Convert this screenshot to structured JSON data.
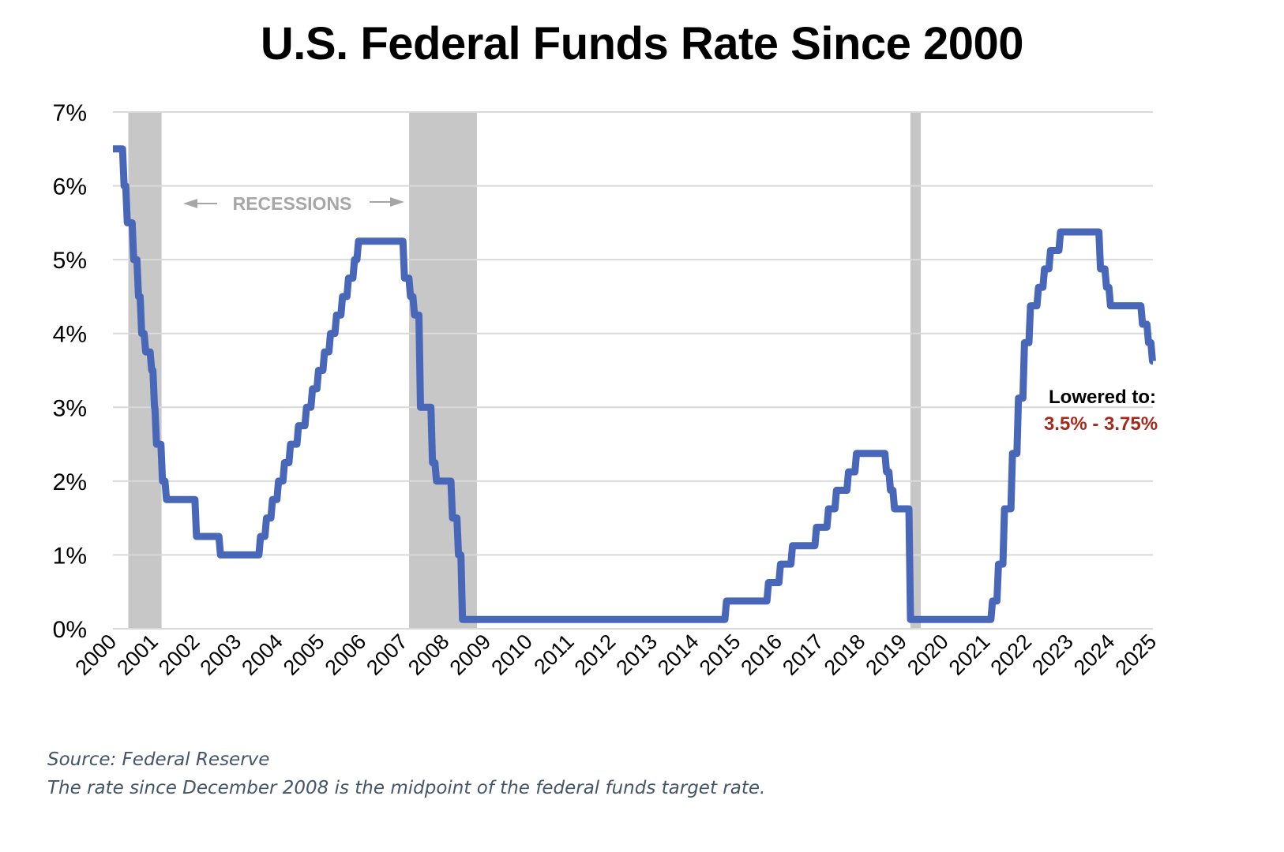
{
  "chart_data": {
    "type": "line",
    "title": "U.S. Federal Funds Rate Since 2000",
    "xlabel": "",
    "ylabel": "",
    "xlim": [
      2000,
      2025
    ],
    "ylim": [
      0,
      7
    ],
    "grid": true,
    "y_ticks": [
      0,
      1,
      2,
      3,
      4,
      5,
      6,
      7
    ],
    "y_tick_labels": [
      "0%",
      "1%",
      "2%",
      "3%",
      "4%",
      "5%",
      "6%",
      "7%"
    ],
    "x_tick_labels": [
      "2000",
      "2001",
      "2002",
      "2003",
      "2004",
      "2005",
      "2006",
      "2007",
      "2008",
      "2009",
      "2010",
      "2011",
      "2012",
      "2013",
      "2014",
      "2015",
      "2016",
      "2017",
      "2018",
      "2019",
      "2020",
      "2021",
      "2022",
      "2023",
      "2024",
      "2025"
    ],
    "line_color": "#4867b8",
    "recession_color": "#c8c7c8",
    "recessions": [
      [
        2000.37,
        2001.17
      ],
      [
        2007.12,
        2008.75
      ],
      [
        2019.17,
        2019.42
      ]
    ],
    "recession_label": "RECESSIONS",
    "series": [
      {
        "name": "Federal Funds Rate",
        "step": true,
        "points": [
          [
            2000.0,
            6.5
          ],
          [
            2000.24,
            6.0
          ],
          [
            2000.32,
            5.5
          ],
          [
            2000.48,
            5.0
          ],
          [
            2000.6,
            4.5
          ],
          [
            2000.68,
            4.0
          ],
          [
            2000.78,
            3.75
          ],
          [
            2000.93,
            3.5
          ],
          [
            2001.0,
            3.0
          ],
          [
            2001.05,
            2.5
          ],
          [
            2001.2,
            2.0
          ],
          [
            2001.3,
            1.75
          ],
          [
            2002.05,
            1.25
          ],
          [
            2002.65,
            1.0
          ],
          [
            2003.65,
            1.25
          ],
          [
            2003.8,
            1.5
          ],
          [
            2003.95,
            1.75
          ],
          [
            2004.1,
            2.0
          ],
          [
            2004.25,
            2.25
          ],
          [
            2004.4,
            2.5
          ],
          [
            2004.6,
            2.75
          ],
          [
            2004.8,
            3.0
          ],
          [
            2004.95,
            3.25
          ],
          [
            2005.1,
            3.5
          ],
          [
            2005.25,
            3.75
          ],
          [
            2005.4,
            4.0
          ],
          [
            2005.55,
            4.25
          ],
          [
            2005.7,
            4.5
          ],
          [
            2005.85,
            4.75
          ],
          [
            2006.0,
            5.0
          ],
          [
            2006.1,
            5.25
          ],
          [
            2007.25,
            4.75
          ],
          [
            2007.4,
            4.5
          ],
          [
            2007.5,
            4.25
          ],
          [
            2007.65,
            3.0
          ],
          [
            2007.95,
            2.25
          ],
          [
            2008.05,
            2.0
          ],
          [
            2008.45,
            1.5
          ],
          [
            2008.6,
            1.0
          ],
          [
            2008.7,
            0.125
          ],
          [
            2015.3,
            0.375
          ],
          [
            2016.35,
            0.625
          ],
          [
            2016.65,
            0.875
          ],
          [
            2016.95,
            1.125
          ],
          [
            2017.55,
            1.375
          ],
          [
            2017.85,
            1.625
          ],
          [
            2018.05,
            1.875
          ],
          [
            2018.35,
            2.125
          ],
          [
            2018.55,
            2.375
          ],
          [
            2019.3,
            2.125
          ],
          [
            2019.4,
            1.875
          ],
          [
            2019.5,
            1.625
          ],
          [
            2019.9,
            0.125
          ],
          [
            2021.95,
            0.375
          ],
          [
            2022.1,
            0.875
          ],
          [
            2022.25,
            1.625
          ],
          [
            2022.45,
            2.375
          ],
          [
            2022.6,
            3.125
          ],
          [
            2022.75,
            3.875
          ],
          [
            2022.9,
            4.375
          ],
          [
            2023.1,
            4.625
          ],
          [
            2023.25,
            4.875
          ],
          [
            2023.4,
            5.125
          ],
          [
            2023.65,
            5.375
          ],
          [
            2024.65,
            4.875
          ],
          [
            2024.8,
            4.625
          ],
          [
            2024.9,
            4.375
          ],
          [
            2025.7,
            4.125
          ],
          [
            2025.85,
            3.875
          ],
          [
            2025.95,
            3.625
          ]
        ],
        "end_x": 2026.0
      }
    ],
    "annotations": [
      {
        "label": "Lowered to:",
        "color": "#000000"
      },
      {
        "label": "3.5% - 3.75%",
        "color": "#a52a1c"
      }
    ]
  },
  "footer": {
    "source": "Source: Federal Reserve",
    "note": "The rate since December 2008 is the midpoint of the federal funds target rate."
  }
}
